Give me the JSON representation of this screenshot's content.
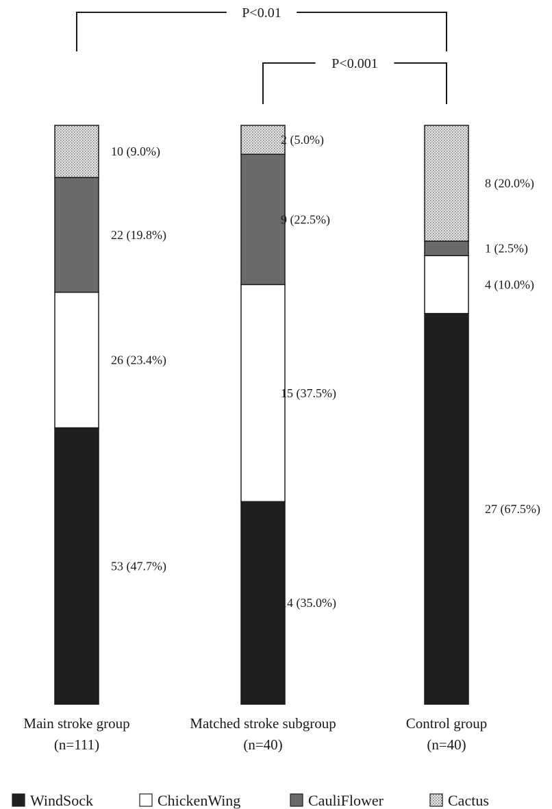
{
  "chart_data": {
    "type": "bar",
    "stacked": true,
    "percent_stacked": true,
    "categories": [
      {
        "name": "Main stroke group",
        "n_label": "(n=111)"
      },
      {
        "name": "Matched stroke subgroup",
        "n_label": "(n=40)"
      },
      {
        "name": "Control group",
        "n_label": "(n=40)"
      }
    ],
    "series": [
      {
        "name": "WindSock",
        "color": "#1f1f1f",
        "pattern": "solid",
        "counts": [
          53,
          14,
          27
        ],
        "percents": [
          47.7,
          35.0,
          67.5
        ],
        "labels": [
          "53 (47.7%)",
          "14 (35.0%)",
          "27 (67.5%)"
        ]
      },
      {
        "name": "ChickenWing",
        "color": "#ffffff",
        "pattern": "solid",
        "counts": [
          26,
          15,
          4
        ],
        "percents": [
          23.4,
          37.5,
          10.0
        ],
        "labels": [
          "26 (23.4%)",
          "15 (37.5%)",
          "4 (10.0%)"
        ]
      },
      {
        "name": "CauliFlower",
        "color": "#6b6b6b",
        "pattern": "solid",
        "counts": [
          22,
          9,
          1
        ],
        "percents": [
          19.8,
          22.5,
          2.5
        ],
        "labels": [
          "22 (19.8%)",
          "9 (22.5%)",
          "1 (2.5%)"
        ]
      },
      {
        "name": "Cactus",
        "color": "#d8d8d8",
        "pattern": "dots",
        "counts": [
          10,
          2,
          8
        ],
        "percents": [
          9.0,
          5.0,
          20.0
        ],
        "labels": [
          "10 (9.0%)",
          "2 (5.0%)",
          "8 (20.0%)"
        ]
      }
    ],
    "significance": [
      {
        "label": "P<0.01",
        "from": 0,
        "to": 2
      },
      {
        "label": "P<0.001",
        "from": 1,
        "to": 2
      }
    ],
    "ylim": [
      0,
      100
    ],
    "grid": false,
    "legend_position": "bottom"
  }
}
